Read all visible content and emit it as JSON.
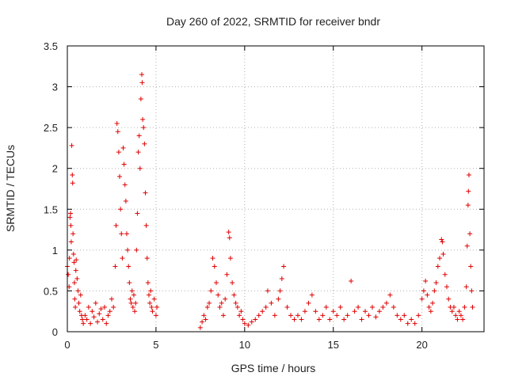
{
  "chart_data": {
    "type": "scatter",
    "title": "Day 260 of 2022, SRMTID for receiver bndr",
    "xlabel": "GPS time / hours",
    "ylabel": "SRMTID / TECUs",
    "xlim": [
      0,
      23.5
    ],
    "ylim": [
      0,
      3.5
    ],
    "x_ticks": [
      0,
      5,
      10,
      15,
      20
    ],
    "x_tick_labels": [
      "0",
      "5",
      "10",
      "15",
      "20"
    ],
    "y_ticks": [
      0,
      0.5,
      1,
      1.5,
      2,
      2.5,
      3,
      3.5
    ],
    "y_tick_labels": [
      "0",
      "0.5",
      "1",
      "1.5",
      "2",
      "2.5",
      "3",
      "3.5"
    ],
    "grid": true,
    "marker": "+",
    "series": [
      {
        "name": "SRMTID",
        "color": "#e00000",
        "points": [
          [
            0.0,
            0.8
          ],
          [
            0.05,
            0.7
          ],
          [
            0.1,
            0.55
          ],
          [
            0.12,
            0.9
          ],
          [
            0.15,
            1.4
          ],
          [
            0.18,
            1.45
          ],
          [
            0.2,
            1.3
          ],
          [
            0.22,
            1.1
          ],
          [
            0.25,
            2.28
          ],
          [
            0.28,
            1.92
          ],
          [
            0.3,
            1.82
          ],
          [
            0.32,
            1.2
          ],
          [
            0.35,
            0.95
          ],
          [
            0.38,
            0.85
          ],
          [
            0.4,
            0.6
          ],
          [
            0.42,
            0.4
          ],
          [
            0.45,
            0.3
          ],
          [
            0.48,
            0.75
          ],
          [
            0.5,
            0.88
          ],
          [
            0.55,
            0.65
          ],
          [
            0.6,
            0.5
          ],
          [
            0.65,
            0.35
          ],
          [
            0.7,
            0.25
          ],
          [
            0.75,
            0.45
          ],
          [
            0.8,
            0.2
          ],
          [
            0.85,
            0.15
          ],
          [
            0.9,
            0.1
          ],
          [
            1.0,
            0.2
          ],
          [
            1.1,
            0.15
          ],
          [
            1.2,
            0.3
          ],
          [
            1.3,
            0.1
          ],
          [
            1.4,
            0.25
          ],
          [
            1.5,
            0.18
          ],
          [
            1.6,
            0.35
          ],
          [
            1.7,
            0.12
          ],
          [
            1.8,
            0.22
          ],
          [
            1.9,
            0.28
          ],
          [
            2.0,
            0.15
          ],
          [
            2.1,
            0.3
          ],
          [
            2.2,
            0.1
          ],
          [
            2.3,
            0.2
          ],
          [
            2.4,
            0.25
          ],
          [
            2.5,
            0.4
          ],
          [
            2.6,
            0.3
          ],
          [
            2.7,
            0.8
          ],
          [
            2.75,
            1.3
          ],
          [
            2.8,
            2.55
          ],
          [
            2.85,
            2.45
          ],
          [
            2.9,
            2.2
          ],
          [
            2.95,
            1.9
          ],
          [
            3.0,
            1.5
          ],
          [
            3.05,
            1.2
          ],
          [
            3.1,
            0.9
          ],
          [
            3.15,
            2.25
          ],
          [
            3.2,
            2.05
          ],
          [
            3.25,
            1.8
          ],
          [
            3.3,
            1.6
          ],
          [
            3.35,
            1.2
          ],
          [
            3.4,
            1.0
          ],
          [
            3.45,
            0.8
          ],
          [
            3.5,
            0.6
          ],
          [
            3.55,
            0.4
          ],
          [
            3.6,
            0.35
          ],
          [
            3.65,
            0.5
          ],
          [
            3.7,
            0.3
          ],
          [
            3.75,
            0.45
          ],
          [
            3.8,
            0.25
          ],
          [
            3.85,
            0.35
          ],
          [
            3.9,
            1.0
          ],
          [
            3.95,
            1.45
          ],
          [
            4.0,
            2.2
          ],
          [
            4.05,
            2.4
          ],
          [
            4.1,
            2.0
          ],
          [
            4.15,
            2.85
          ],
          [
            4.2,
            3.15
          ],
          [
            4.22,
            3.05
          ],
          [
            4.25,
            2.6
          ],
          [
            4.3,
            2.5
          ],
          [
            4.35,
            2.3
          ],
          [
            4.4,
            1.7
          ],
          [
            4.45,
            1.3
          ],
          [
            4.5,
            0.9
          ],
          [
            4.55,
            0.6
          ],
          [
            4.6,
            0.45
          ],
          [
            4.65,
            0.35
          ],
          [
            4.7,
            0.5
          ],
          [
            4.75,
            0.3
          ],
          [
            4.8,
            0.25
          ],
          [
            4.9,
            0.4
          ],
          [
            5.0,
            0.2
          ],
          [
            5.05,
            0.3
          ],
          [
            7.5,
            0.05
          ],
          [
            7.6,
            0.12
          ],
          [
            7.7,
            0.2
          ],
          [
            7.8,
            0.15
          ],
          [
            7.9,
            0.3
          ],
          [
            8.0,
            0.35
          ],
          [
            8.1,
            0.5
          ],
          [
            8.2,
            0.9
          ],
          [
            8.3,
            0.8
          ],
          [
            8.4,
            0.6
          ],
          [
            8.5,
            0.45
          ],
          [
            8.6,
            0.3
          ],
          [
            8.7,
            0.35
          ],
          [
            8.8,
            0.2
          ],
          [
            8.9,
            0.4
          ],
          [
            9.0,
            0.7
          ],
          [
            9.1,
            1.22
          ],
          [
            9.15,
            1.15
          ],
          [
            9.2,
            0.9
          ],
          [
            9.3,
            0.6
          ],
          [
            9.4,
            0.45
          ],
          [
            9.5,
            0.35
          ],
          [
            9.6,
            0.3
          ],
          [
            9.7,
            0.2
          ],
          [
            9.8,
            0.25
          ],
          [
            9.9,
            0.15
          ],
          [
            10.0,
            0.1
          ],
          [
            10.2,
            0.08
          ],
          [
            10.4,
            0.12
          ],
          [
            10.6,
            0.15
          ],
          [
            10.8,
            0.2
          ],
          [
            11.0,
            0.25
          ],
          [
            11.2,
            0.3
          ],
          [
            11.3,
            0.5
          ],
          [
            11.5,
            0.35
          ],
          [
            11.7,
            0.2
          ],
          [
            11.9,
            0.4
          ],
          [
            12.0,
            0.5
          ],
          [
            12.1,
            0.65
          ],
          [
            12.2,
            0.8
          ],
          [
            12.4,
            0.3
          ],
          [
            12.6,
            0.2
          ],
          [
            12.8,
            0.15
          ],
          [
            13.0,
            0.2
          ],
          [
            13.2,
            0.15
          ],
          [
            13.4,
            0.25
          ],
          [
            13.6,
            0.35
          ],
          [
            13.8,
            0.45
          ],
          [
            14.0,
            0.25
          ],
          [
            14.2,
            0.15
          ],
          [
            14.4,
            0.2
          ],
          [
            14.6,
            0.3
          ],
          [
            14.8,
            0.15
          ],
          [
            15.0,
            0.25
          ],
          [
            15.2,
            0.2
          ],
          [
            15.4,
            0.3
          ],
          [
            15.6,
            0.15
          ],
          [
            15.8,
            0.2
          ],
          [
            16.0,
            0.62
          ],
          [
            16.2,
            0.25
          ],
          [
            16.4,
            0.3
          ],
          [
            16.6,
            0.15
          ],
          [
            16.8,
            0.25
          ],
          [
            17.0,
            0.2
          ],
          [
            17.2,
            0.3
          ],
          [
            17.4,
            0.18
          ],
          [
            17.6,
            0.25
          ],
          [
            17.8,
            0.3
          ],
          [
            18.0,
            0.35
          ],
          [
            18.2,
            0.45
          ],
          [
            18.4,
            0.3
          ],
          [
            18.6,
            0.2
          ],
          [
            18.8,
            0.15
          ],
          [
            19.0,
            0.2
          ],
          [
            19.2,
            0.1
          ],
          [
            19.4,
            0.15
          ],
          [
            19.6,
            0.1
          ],
          [
            19.8,
            0.2
          ],
          [
            20.0,
            0.4
          ],
          [
            20.1,
            0.5
          ],
          [
            20.2,
            0.62
          ],
          [
            20.3,
            0.45
          ],
          [
            20.4,
            0.3
          ],
          [
            20.5,
            0.25
          ],
          [
            20.6,
            0.35
          ],
          [
            20.7,
            0.5
          ],
          [
            20.8,
            0.6
          ],
          [
            20.9,
            0.8
          ],
          [
            21.0,
            0.9
          ],
          [
            21.1,
            1.13
          ],
          [
            21.15,
            1.1
          ],
          [
            21.2,
            0.95
          ],
          [
            21.3,
            0.7
          ],
          [
            21.4,
            0.55
          ],
          [
            21.5,
            0.4
          ],
          [
            21.6,
            0.3
          ],
          [
            21.7,
            0.25
          ],
          [
            21.8,
            0.3
          ],
          [
            21.9,
            0.2
          ],
          [
            22.0,
            0.15
          ],
          [
            22.1,
            0.25
          ],
          [
            22.2,
            0.2
          ],
          [
            22.3,
            0.15
          ],
          [
            22.4,
            0.3
          ],
          [
            22.5,
            0.55
          ],
          [
            22.55,
            1.05
          ],
          [
            22.6,
            1.55
          ],
          [
            22.62,
            1.72
          ],
          [
            22.65,
            1.92
          ],
          [
            22.7,
            1.2
          ],
          [
            22.75,
            0.8
          ],
          [
            22.8,
            0.5
          ],
          [
            22.85,
            0.3
          ]
        ]
      }
    ]
  }
}
